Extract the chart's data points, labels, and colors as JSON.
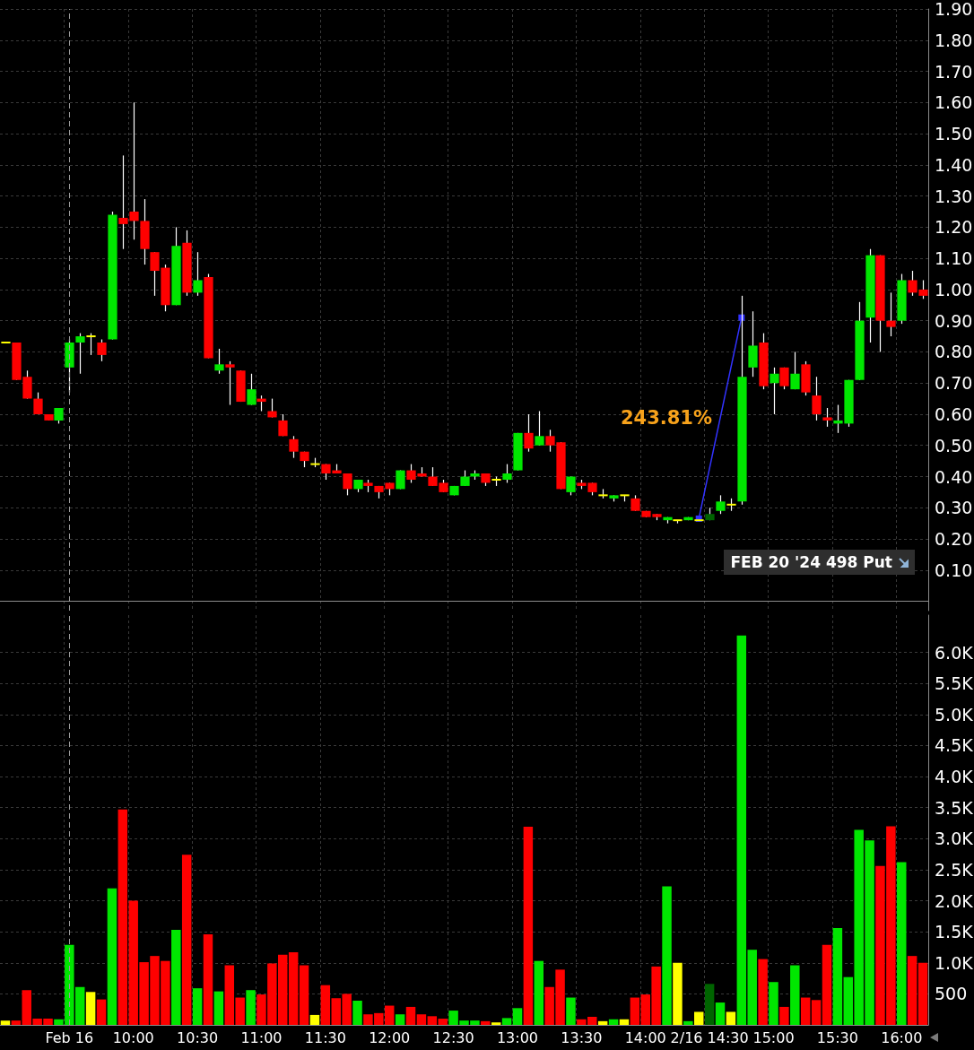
{
  "chart_data": [
    {
      "type": "candlestick",
      "categories": [
        null,
        null,
        null,
        null,
        null,
        null,
        "Feb 16",
        null,
        null,
        null,
        null,
        null,
        "10:00",
        null,
        null,
        null,
        null,
        null,
        "10:30",
        null,
        null,
        null,
        null,
        null,
        "11:00",
        null,
        null,
        null,
        null,
        null,
        "11:30",
        null,
        null,
        null,
        null,
        null,
        "12:00",
        null,
        null,
        null,
        null,
        null,
        "12:30",
        null,
        null,
        null,
        null,
        null,
        "13:00",
        null,
        null,
        null,
        null,
        null,
        "13:30",
        null,
        null,
        null,
        null,
        null,
        "14:00",
        null,
        null,
        null,
        null,
        null,
        "2/16 14:30",
        null,
        null,
        null,
        null,
        null,
        "15:00",
        null,
        null,
        null,
        null,
        null,
        "15:30",
        null,
        null,
        null,
        null,
        null,
        "16:00",
        null,
        null
      ],
      "ohlc": [
        [
          0.83,
          0.83,
          0.83,
          0.83
        ],
        [
          0.83,
          0.83,
          0.71,
          0.71
        ],
        [
          0.72,
          0.74,
          0.65,
          0.65
        ],
        [
          0.65,
          0.67,
          0.6,
          0.6
        ],
        [
          0.6,
          0.6,
          0.58,
          0.58
        ],
        [
          0.58,
          0.62,
          0.57,
          0.62
        ],
        [
          0.75,
          0.84,
          0.67,
          0.83
        ],
        [
          0.83,
          0.86,
          0.73,
          0.85
        ],
        [
          0.85,
          0.86,
          0.79,
          0.85
        ],
        [
          0.83,
          0.84,
          0.77,
          0.79
        ],
        [
          0.84,
          1.25,
          0.84,
          1.24
        ],
        [
          1.23,
          1.43,
          1.13,
          1.21
        ],
        [
          1.25,
          1.6,
          1.16,
          1.22
        ],
        [
          1.22,
          1.29,
          1.08,
          1.13
        ],
        [
          1.12,
          1.12,
          0.98,
          1.06
        ],
        [
          1.07,
          1.08,
          0.93,
          0.95
        ],
        [
          0.95,
          1.2,
          0.95,
          1.14
        ],
        [
          1.15,
          1.19,
          0.98,
          0.99
        ],
        [
          0.99,
          1.12,
          0.98,
          1.03
        ],
        [
          1.04,
          1.05,
          0.78,
          0.78
        ],
        [
          0.74,
          0.81,
          0.73,
          0.76
        ],
        [
          0.76,
          0.77,
          0.63,
          0.75
        ],
        [
          0.74,
          0.74,
          0.64,
          0.64
        ],
        [
          0.63,
          0.73,
          0.63,
          0.68
        ],
        [
          0.65,
          0.66,
          0.61,
          0.64
        ],
        [
          0.61,
          0.65,
          0.59,
          0.59
        ],
        [
          0.58,
          0.6,
          0.53,
          0.53
        ],
        [
          0.52,
          0.53,
          0.46,
          0.48
        ],
        [
          0.48,
          0.48,
          0.43,
          0.45
        ],
        [
          0.44,
          0.46,
          0.43,
          0.44
        ],
        [
          0.44,
          0.44,
          0.39,
          0.41
        ],
        [
          0.42,
          0.44,
          0.41,
          0.41
        ],
        [
          0.41,
          0.41,
          0.34,
          0.36
        ],
        [
          0.36,
          0.39,
          0.35,
          0.39
        ],
        [
          0.38,
          0.39,
          0.35,
          0.37
        ],
        [
          0.37,
          0.37,
          0.33,
          0.35
        ],
        [
          0.38,
          0.38,
          0.34,
          0.36
        ],
        [
          0.36,
          0.42,
          0.36,
          0.42
        ],
        [
          0.42,
          0.44,
          0.38,
          0.39
        ],
        [
          0.41,
          0.43,
          0.4,
          0.4
        ],
        [
          0.4,
          0.43,
          0.37,
          0.37
        ],
        [
          0.38,
          0.39,
          0.35,
          0.35
        ],
        [
          0.34,
          0.37,
          0.34,
          0.37
        ],
        [
          0.37,
          0.42,
          0.37,
          0.4
        ],
        [
          0.4,
          0.42,
          0.39,
          0.41
        ],
        [
          0.41,
          0.41,
          0.37,
          0.38
        ],
        [
          0.39,
          0.4,
          0.37,
          0.39
        ],
        [
          0.39,
          0.44,
          0.38,
          0.41
        ],
        [
          0.42,
          0.54,
          0.42,
          0.54
        ],
        [
          0.54,
          0.6,
          0.48,
          0.49
        ],
        [
          0.5,
          0.61,
          0.5,
          0.53
        ],
        [
          0.53,
          0.55,
          0.48,
          0.5
        ],
        [
          0.51,
          0.51,
          0.36,
          0.36
        ],
        [
          0.35,
          0.4,
          0.34,
          0.4
        ],
        [
          0.38,
          0.39,
          0.36,
          0.37
        ],
        [
          0.38,
          0.38,
          0.34,
          0.35
        ],
        [
          0.34,
          0.36,
          0.33,
          0.34
        ],
        [
          0.33,
          0.34,
          0.32,
          0.34
        ],
        [
          0.34,
          0.34,
          0.32,
          0.34
        ],
        [
          0.33,
          0.34,
          0.29,
          0.29
        ],
        [
          0.29,
          0.29,
          0.27,
          0.27
        ],
        [
          0.28,
          0.28,
          0.26,
          0.27
        ],
        [
          0.26,
          0.27,
          0.25,
          0.27
        ],
        [
          0.26,
          0.26,
          0.25,
          0.26
        ],
        [
          0.26,
          0.27,
          0.26,
          0.27
        ],
        [
          0.26,
          0.26,
          0.26,
          0.26
        ],
        [
          0.26,
          0.3,
          0.26,
          0.28
        ],
        [
          0.29,
          0.34,
          0.28,
          0.32
        ],
        [
          0.31,
          0.33,
          0.29,
          0.31
        ],
        [
          0.32,
          0.98,
          0.31,
          0.72
        ],
        [
          0.75,
          0.93,
          0.72,
          0.82
        ],
        [
          0.83,
          0.86,
          0.68,
          0.69
        ],
        [
          0.7,
          0.75,
          0.6,
          0.73
        ],
        [
          0.75,
          0.75,
          0.68,
          0.69
        ],
        [
          0.68,
          0.8,
          0.68,
          0.73
        ],
        [
          0.76,
          0.77,
          0.66,
          0.67
        ],
        [
          0.66,
          0.72,
          0.58,
          0.6
        ],
        [
          0.59,
          0.62,
          0.56,
          0.58
        ],
        [
          0.57,
          0.63,
          0.54,
          0.58
        ],
        [
          0.57,
          0.71,
          0.56,
          0.71
        ],
        [
          0.71,
          0.96,
          0.71,
          0.9
        ],
        [
          0.91,
          1.13,
          0.83,
          1.11
        ],
        [
          1.11,
          1.11,
          0.8,
          0.9
        ],
        [
          0.9,
          0.99,
          0.85,
          0.88
        ],
        [
          0.9,
          1.05,
          0.89,
          1.03
        ],
        [
          1.03,
          1.06,
          0.98,
          0.99
        ],
        [
          1.0,
          1.03,
          0.97,
          0.98
        ]
      ],
      "colors": [
        "#ffff00",
        "#ff0000",
        "#ff0000",
        "#ff0000",
        "#ff0000",
        "#00e600",
        "#00e600",
        "#00e600",
        "#ffff00",
        "#ff0000",
        "#00e600",
        "#ff0000",
        "#ff0000",
        "#ff0000",
        "#ff0000",
        "#ff0000",
        "#00e600",
        "#ff0000",
        "#00e600",
        "#ff0000",
        "#00e600",
        "#ff0000",
        "#ff0000",
        "#00e600",
        "#ff0000",
        "#ff0000",
        "#ff0000",
        "#ff0000",
        "#ff0000",
        "#ffff00",
        "#ff0000",
        "#ff0000",
        "#ff0000",
        "#00e600",
        "#ff0000",
        "#ff0000",
        "#ff0000",
        "#00e600",
        "#ff0000",
        "#ff0000",
        "#ff0000",
        "#ff0000",
        "#00e600",
        "#00e600",
        "#00e600",
        "#ff0000",
        "#ffff00",
        "#00e600",
        "#00e600",
        "#ff0000",
        "#00e600",
        "#ff0000",
        "#ff0000",
        "#00e600",
        "#ff0000",
        "#ff0000",
        "#ffff00",
        "#00e600",
        "#ffff00",
        "#ff0000",
        "#ff0000",
        "#ff0000",
        "#00e600",
        "#ffff00",
        "#00e600",
        "#ffff00",
        "#006400",
        "#00e600",
        "#ffff00",
        "#00e600",
        "#00e600",
        "#ff0000",
        "#00e600",
        "#ff0000",
        "#00e600",
        "#ff0000",
        "#ff0000",
        "#ff0000",
        "#00e600",
        "#00e600",
        "#00e600",
        "#00e600",
        "#ff0000",
        "#ff0000",
        "#00e600",
        "#ff0000",
        "#ff0000"
      ],
      "series": [
        {
          "type": "line",
          "name": "243.81%",
          "color": "#3232ff",
          "marker": "square",
          "values": [
            null,
            null,
            null,
            null,
            null,
            null,
            null,
            null,
            null,
            null,
            null,
            null,
            null,
            null,
            null,
            null,
            null,
            null,
            null,
            null,
            null,
            null,
            null,
            null,
            null,
            null,
            null,
            null,
            null,
            null,
            null,
            null,
            null,
            null,
            null,
            null,
            null,
            null,
            null,
            null,
            null,
            null,
            null,
            null,
            null,
            null,
            null,
            null,
            null,
            null,
            null,
            null,
            null,
            null,
            null,
            null,
            null,
            null,
            null,
            null,
            null,
            null,
            null,
            null,
            null,
            0.265,
            null,
            null,
            null,
            0.91,
            null,
            null,
            null,
            null,
            null,
            null,
            null,
            null,
            null,
            null,
            null,
            null,
            null,
            null,
            null,
            null,
            null
          ]
        }
      ],
      "ylim": [
        -0.03,
        1.9
      ],
      "yticks": [
        {
          "value": 0.1,
          "label": "0.10"
        },
        {
          "value": 0.2,
          "label": "0.20"
        },
        {
          "value": 0.3,
          "label": "0.30"
        },
        {
          "value": 0.4,
          "label": "0.40"
        },
        {
          "value": 0.5,
          "label": "0.50"
        },
        {
          "value": 0.6,
          "label": "0.60"
        },
        {
          "value": 0.7,
          "label": "0.70"
        },
        {
          "value": 0.8,
          "label": "0.80"
        },
        {
          "value": 0.9,
          "label": "0.90"
        },
        {
          "value": 1.0,
          "label": "1.00"
        },
        {
          "value": 1.1,
          "label": "1.10"
        },
        {
          "value": 1.2,
          "label": "1.20"
        },
        {
          "value": 1.3,
          "label": "1.30"
        },
        {
          "value": 1.4,
          "label": "1.40"
        },
        {
          "value": 1.5,
          "label": "1.50"
        },
        {
          "value": 1.6,
          "label": "1.60"
        },
        {
          "value": 1.7,
          "label": "1.70"
        },
        {
          "value": 1.8,
          "label": "1.80"
        },
        {
          "value": 1.9,
          "label": "1.90"
        }
      ],
      "grid": true,
      "tick_labels": "y",
      "ref_lines": [
        {
          "axis": "x",
          "value": "Feb 16",
          "color": "#9a9a9a",
          "line_style": "dashed"
        }
      ],
      "annotations": [
        "FEB 20 '24 498 Put"
      ]
    },
    {
      "type": "bar",
      "categories": [
        null,
        null,
        null,
        null,
        null,
        null,
        "Feb 16",
        null,
        null,
        null,
        null,
        null,
        "10:00",
        null,
        null,
        null,
        null,
        null,
        "10:30",
        null,
        null,
        null,
        null,
        null,
        "11:00",
        null,
        null,
        null,
        null,
        null,
        "11:30",
        null,
        null,
        null,
        null,
        null,
        "12:00",
        null,
        null,
        null,
        null,
        null,
        "12:30",
        null,
        null,
        null,
        null,
        null,
        "13:00",
        null,
        null,
        null,
        null,
        null,
        "13:30",
        null,
        null,
        null,
        null,
        null,
        "14:00",
        null,
        null,
        null,
        null,
        null,
        "2/16 14:30",
        null,
        null,
        null,
        null,
        null,
        "15:00",
        null,
        null,
        null,
        null,
        null,
        "15:30",
        null,
        null,
        null,
        null,
        null,
        "16:00",
        null,
        null
      ],
      "values": [
        70,
        70,
        560,
        100,
        100,
        90,
        1290,
        610,
        530,
        410,
        2200,
        3470,
        2000,
        1010,
        1110,
        1030,
        1530,
        2740,
        590,
        1460,
        540,
        960,
        440,
        560,
        490,
        990,
        1130,
        1170,
        960,
        160,
        640,
        430,
        500,
        390,
        170,
        190,
        310,
        170,
        290,
        170,
        140,
        100,
        230,
        70,
        70,
        60,
        40,
        110,
        270,
        3190,
        1030,
        610,
        890,
        440,
        90,
        130,
        60,
        90,
        90,
        440,
        490,
        940,
        2230,
        1000,
        60,
        210,
        660,
        360,
        210,
        6270,
        1210,
        1060,
        690,
        290,
        960,
        440,
        400,
        1290,
        1560,
        770,
        3140,
        2970,
        2560,
        3200,
        2620,
        1110,
        1000
      ],
      "colors": [
        "#ffff00",
        "#ff0000",
        "#ff0000",
        "#ff0000",
        "#ff0000",
        "#00e600",
        "#00e600",
        "#00e600",
        "#ffff00",
        "#ff0000",
        "#00e600",
        "#ff0000",
        "#ff0000",
        "#ff0000",
        "#ff0000",
        "#ff0000",
        "#00e600",
        "#ff0000",
        "#00e600",
        "#ff0000",
        "#00e600",
        "#ff0000",
        "#ff0000",
        "#00e600",
        "#ff0000",
        "#ff0000",
        "#ff0000",
        "#ff0000",
        "#ff0000",
        "#ffff00",
        "#ff0000",
        "#ff0000",
        "#ff0000",
        "#00e600",
        "#ff0000",
        "#ff0000",
        "#ff0000",
        "#00e600",
        "#ff0000",
        "#ff0000",
        "#ff0000",
        "#ff0000",
        "#00e600",
        "#00e600",
        "#00e600",
        "#ff0000",
        "#ffff00",
        "#00e600",
        "#00e600",
        "#ff0000",
        "#00e600",
        "#ff0000",
        "#ff0000",
        "#00e600",
        "#ff0000",
        "#ff0000",
        "#ffff00",
        "#00e600",
        "#ffff00",
        "#ff0000",
        "#ff0000",
        "#ff0000",
        "#00e600",
        "#ffff00",
        "#00e600",
        "#ffff00",
        "#006400",
        "#00e600",
        "#ffff00",
        "#00e600",
        "#00e600",
        "#ff0000",
        "#00e600",
        "#ff0000",
        "#00e600",
        "#ff0000",
        "#ff0000",
        "#ff0000",
        "#00e600",
        "#00e600",
        "#00e600",
        "#00e600",
        "#ff0000",
        "#ff0000",
        "#00e600",
        "#ff0000",
        "#ff0000"
      ],
      "ylim": [
        0,
        6600
      ],
      "yticks": [
        500,
        {
          "value": 1000,
          "label": "1.0K"
        },
        {
          "value": 1500,
          "label": "1.5K"
        },
        {
          "value": 2000,
          "label": "2.0K"
        },
        {
          "value": 2500,
          "label": "2.5K"
        },
        {
          "value": 3000,
          "label": "3.0K"
        },
        {
          "value": 3500,
          "label": "3.5K"
        },
        {
          "value": 4000,
          "label": "4.0K"
        },
        {
          "value": 4500,
          "label": "4.5K"
        },
        {
          "value": 5000,
          "label": "5.0K"
        },
        {
          "value": 5500,
          "label": "5.5K"
        },
        {
          "value": 6000,
          "label": "6.0K"
        }
      ],
      "grid": true,
      "ref_lines": [
        {
          "axis": "x",
          "value": "Feb 16",
          "color": "#9a9a9a",
          "line_style": "dashed"
        }
      ]
    }
  ]
}
